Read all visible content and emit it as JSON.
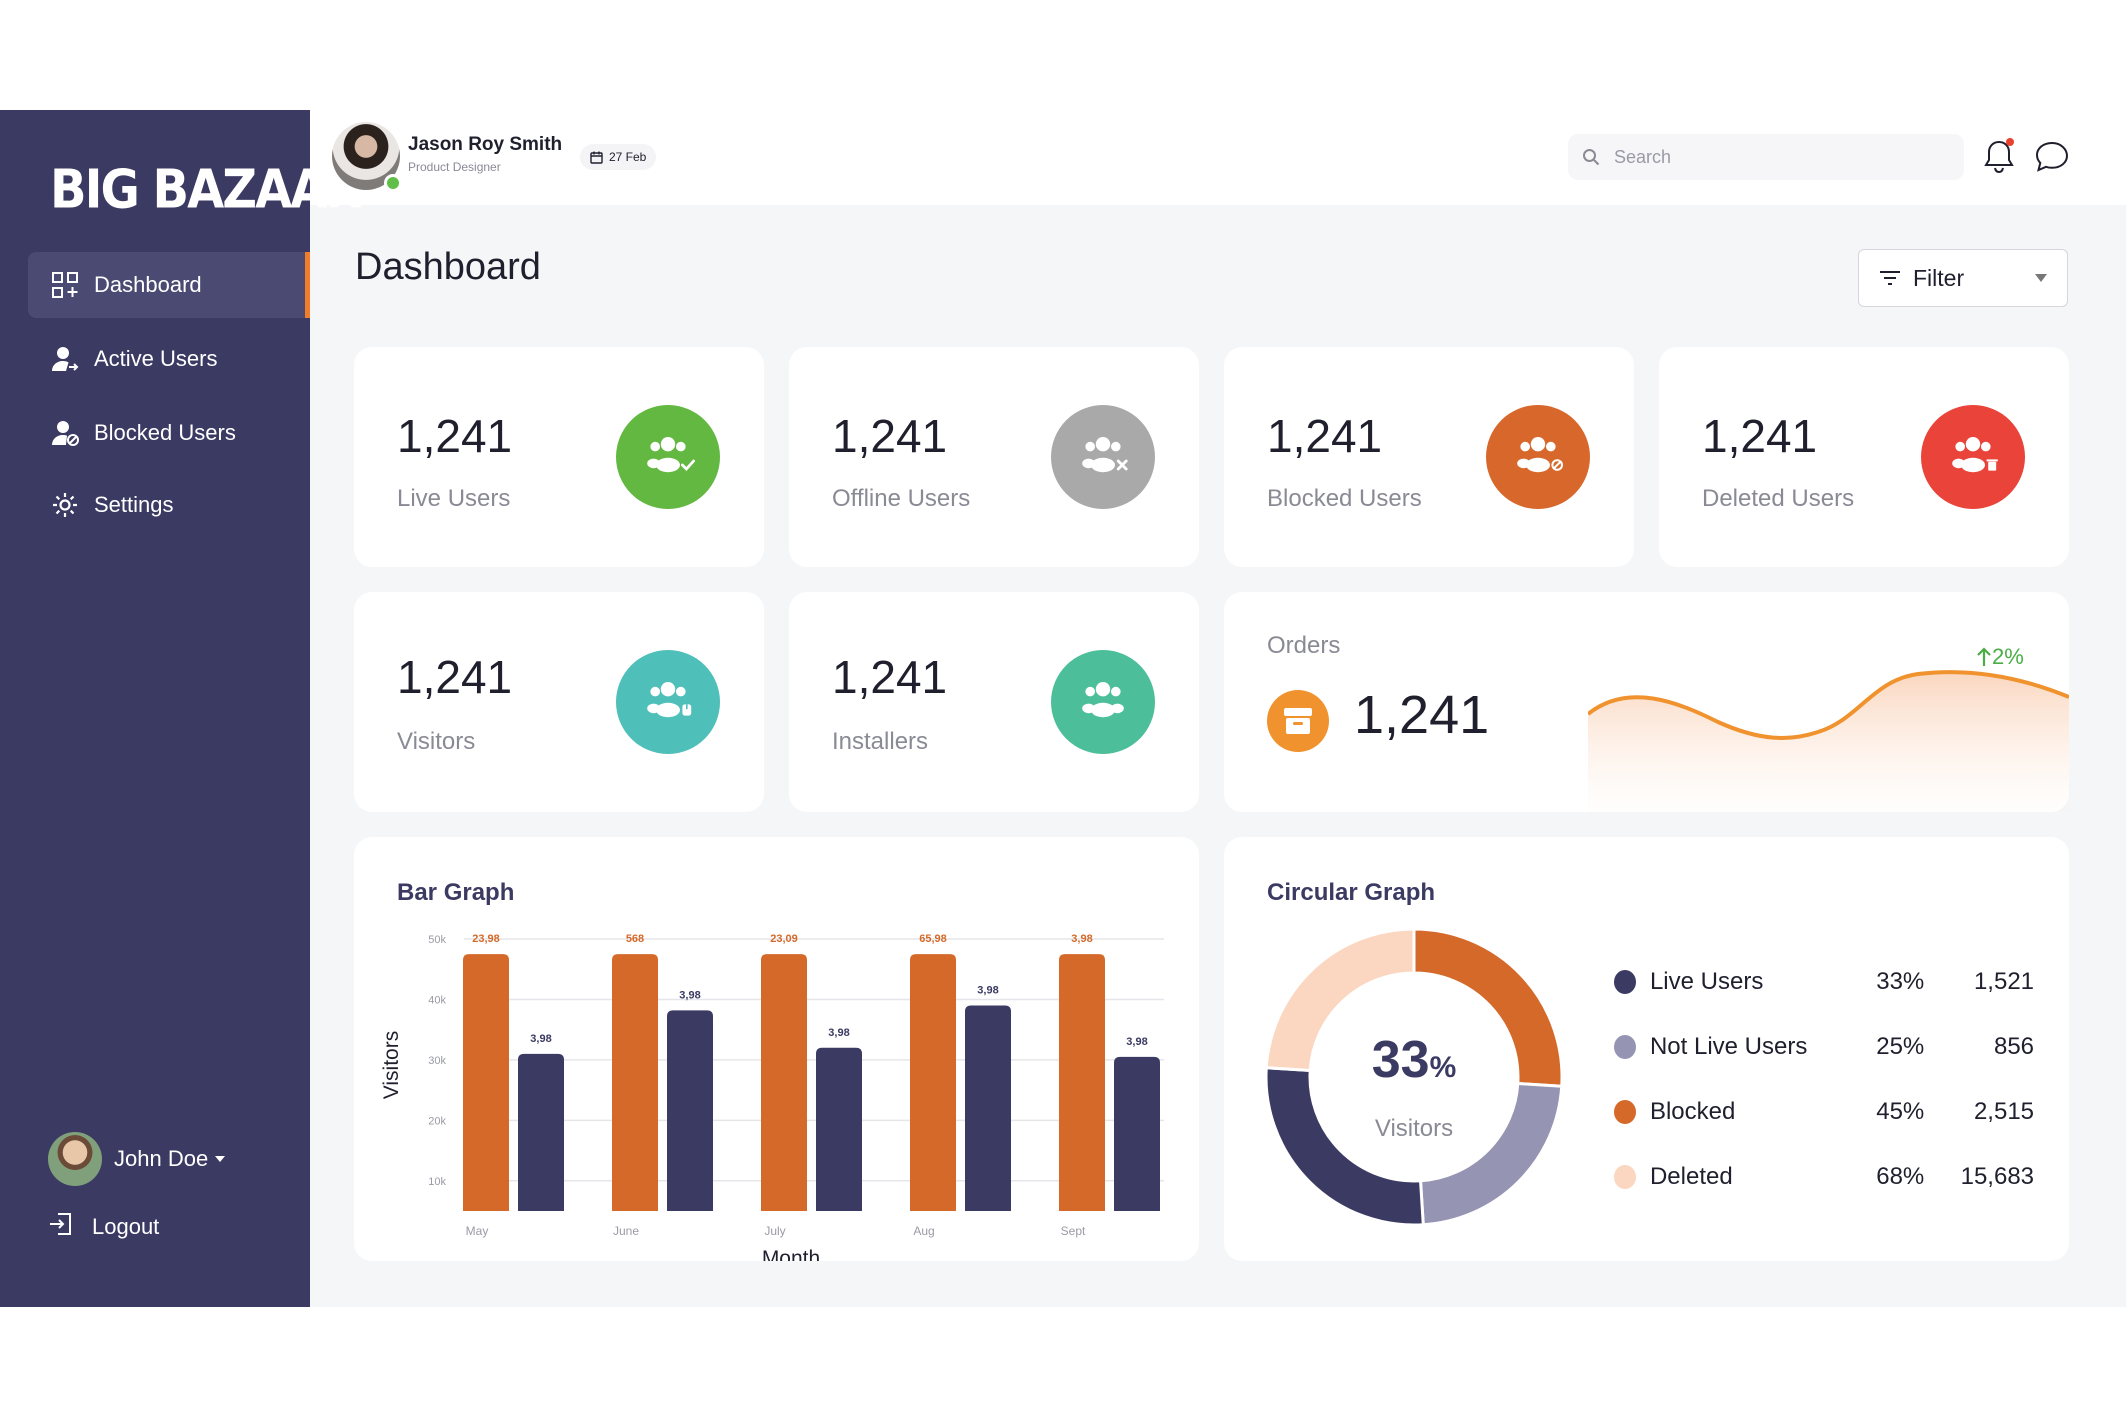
{
  "brand": "BIG BAZAAR",
  "sidebar": {
    "items": [
      {
        "label": "Dashboard",
        "icon": "dashboard-grid-icon"
      },
      {
        "label": "Active Users",
        "icon": "active-user-icon"
      },
      {
        "label": "Blocked Users",
        "icon": "blocked-user-icon"
      },
      {
        "label": "Settings",
        "icon": "gear-icon"
      }
    ],
    "user": {
      "name": "John Doe"
    },
    "logout_label": "Logout"
  },
  "header": {
    "name": "Jason Roy Smith",
    "role": "Product Designer",
    "date": "27 Feb",
    "search_placeholder": "Search"
  },
  "page": {
    "title": "Dashboard",
    "filter_label": "Filter"
  },
  "stats": [
    {
      "value": "1,241",
      "label": "Live Users",
      "color": "#62b840",
      "icon": "users-check-icon"
    },
    {
      "value": "1,241",
      "label": "Offline Users",
      "color": "#a9a9a9",
      "icon": "users-x-icon"
    },
    {
      "value": "1,241",
      "label": "Blocked Users",
      "color": "#d7672a",
      "icon": "users-blocked-icon"
    },
    {
      "value": "1,241",
      "label": "Deleted Users",
      "color": "#e9433a",
      "icon": "users-deleted-icon"
    },
    {
      "value": "1,241",
      "label": "Visitors",
      "color": "#4fbfba",
      "icon": "users-visitor-icon"
    },
    {
      "value": "1,241",
      "label": "Installers",
      "color": "#4cbf9a",
      "icon": "users-installer-icon"
    }
  ],
  "orders": {
    "label": "Orders",
    "value": "1,241",
    "change": "2%",
    "accent": "#f0922d"
  },
  "bar_graph": {
    "title": "Bar Graph",
    "chart_data": {
      "type": "bar",
      "categories": [
        "May",
        "June",
        "July",
        "Aug",
        "Sept"
      ],
      "series": [
        {
          "color": "#d4692a",
          "values": [
            47500,
            47500,
            47500,
            47500,
            47500
          ],
          "labels": [
            "23,98",
            "568",
            "23,09",
            "65,98",
            "3,98"
          ]
        },
        {
          "color": "#3b3a63",
          "values": [
            31000,
            38200,
            32000,
            39000,
            30500
          ],
          "labels": [
            "3,98",
            "3,98",
            "3,98",
            "3,98",
            "3,98"
          ]
        }
      ],
      "yticks": [
        "50k",
        "40k",
        "30k",
        "20k",
        "10k"
      ],
      "ylim": [
        5000,
        50000
      ],
      "xlabel": "Month",
      "ylabel": "Visitors",
      "grid": true
    }
  },
  "circular_graph": {
    "title": "Circular Graph",
    "center_value": "33",
    "center_unit": "%",
    "center_label": "Visitors",
    "chart_data": {
      "type": "pie",
      "segments": [
        {
          "name": "Live Users",
          "percent": "33%",
          "count": "1,521",
          "color": "#3b3a63",
          "share": 27
        },
        {
          "name": "Not Live Users",
          "percent": "25%",
          "count": "856",
          "color": "#9594b3",
          "share": 23
        },
        {
          "name": "Blocked",
          "percent": "45%",
          "count": "2,515",
          "color": "#d4692a",
          "share": 26
        },
        {
          "name": "Deleted",
          "percent": "68%",
          "count": "15,683",
          "color": "#fbd6c0",
          "share": 24
        }
      ]
    }
  }
}
